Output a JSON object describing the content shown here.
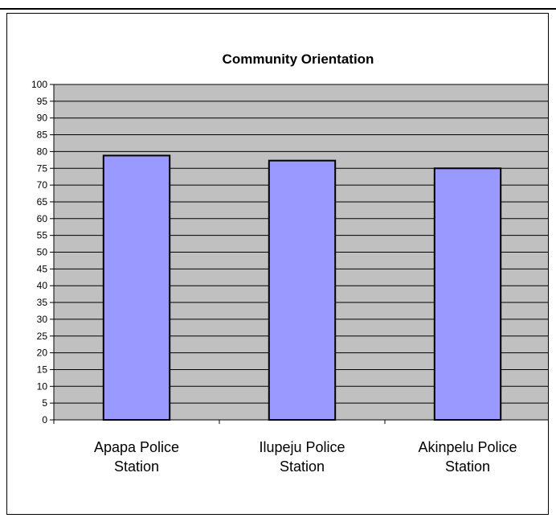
{
  "colors": {
    "plot_bg": "#c0c0c0",
    "bar_fill": "#9999ff",
    "bar_stroke": "#000000",
    "grid": "#000000"
  },
  "chart_data": {
    "type": "bar",
    "title": "Community Orientation",
    "categories": [
      "Apapa Police Station",
      "Ilupeju Police Station",
      "Akinpelu Police Station"
    ],
    "category_lines": [
      [
        "Apapa Police",
        "Station"
      ],
      [
        "Ilupeju Police",
        "Station"
      ],
      [
        "Akinpelu Police",
        "Station"
      ]
    ],
    "values": [
      78.8,
      77.3,
      75
    ],
    "ylim": [
      0,
      100
    ],
    "ytick_step": 5,
    "grid": true,
    "legend": "none",
    "xlabel": "",
    "ylabel": ""
  }
}
